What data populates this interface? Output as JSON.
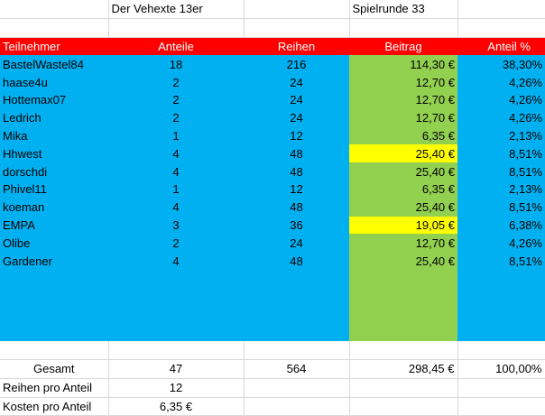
{
  "title_left": "Der Vehexte 13er",
  "title_right_label": "Spielrunde",
  "title_right_value": "33",
  "columns": [
    "Teilnehmer",
    "Anteile",
    "Reihen",
    "Beitrag",
    "Anteil %"
  ],
  "rows": [
    {
      "name": "BastelWastel84",
      "anteile": "18",
      "reihen": "216",
      "beitrag": "114,30 €",
      "anteil_pct": "38,30%",
      "highlight": false
    },
    {
      "name": "haase4u",
      "anteile": "2",
      "reihen": "24",
      "beitrag": "12,70 €",
      "anteil_pct": "4,26%",
      "highlight": false
    },
    {
      "name": "Hottemax07",
      "anteile": "2",
      "reihen": "24",
      "beitrag": "12,70 €",
      "anteil_pct": "4,26%",
      "highlight": false
    },
    {
      "name": "Ledrich",
      "anteile": "2",
      "reihen": "24",
      "beitrag": "12,70 €",
      "anteil_pct": "4,26%",
      "highlight": false
    },
    {
      "name": "Mika",
      "anteile": "1",
      "reihen": "12",
      "beitrag": "6,35 €",
      "anteil_pct": "2,13%",
      "highlight": false
    },
    {
      "name": "Hhwest",
      "anteile": "4",
      "reihen": "48",
      "beitrag": "25,40 €",
      "anteil_pct": "8,51%",
      "highlight": true
    },
    {
      "name": "dorschdi",
      "anteile": "4",
      "reihen": "48",
      "beitrag": "25,40 €",
      "anteil_pct": "8,51%",
      "highlight": false
    },
    {
      "name": "Phivel11",
      "anteile": "1",
      "reihen": "12",
      "beitrag": "6,35 €",
      "anteil_pct": "2,13%",
      "highlight": false
    },
    {
      "name": "koeman",
      "anteile": "4",
      "reihen": "48",
      "beitrag": "25,40 €",
      "anteil_pct": "8,51%",
      "highlight": false
    },
    {
      "name": "EMPA",
      "anteile": "3",
      "reihen": "36",
      "beitrag": "19,05 €",
      "anteil_pct": "6,38%",
      "highlight": true
    },
    {
      "name": "Olibe",
      "anteile": "2",
      "reihen": "24",
      "beitrag": "12,70 €",
      "anteil_pct": "4,26%",
      "highlight": false
    },
    {
      "name": "Gardener",
      "anteile": "4",
      "reihen": "48",
      "beitrag": "25,40 €",
      "anteil_pct": "8,51%",
      "highlight": false
    }
  ],
  "totals": {
    "label": "Gesamt",
    "anteile": "47",
    "reihen": "564",
    "beitrag": "298,45 €",
    "anteil_pct": "100,00%"
  },
  "reihen_pro_anteil": {
    "label": "Reihen pro Anteil",
    "value": "12"
  },
  "kosten_pro_anteil": {
    "label": "Kosten pro Anteil",
    "value": "6,35 €"
  },
  "colors": {
    "header": "#ff0000",
    "body": "#00b0f0",
    "beitrag": "#92d050",
    "highlight": "#ffff00"
  }
}
